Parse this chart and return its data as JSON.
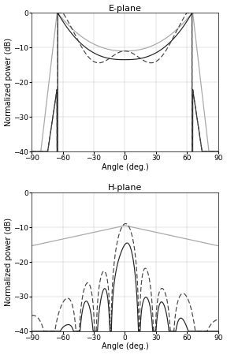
{
  "title_eplane": "E-plane",
  "title_hplane": "H-plane",
  "xlabel": "Angle (deg.)",
  "ylabel": "Normalized power (dB)",
  "xlim": [
    -90,
    90
  ],
  "ylim": [
    -40,
    0
  ],
  "xticks": [
    -90,
    -60,
    -30,
    0,
    30,
    60,
    90
  ],
  "yticks": [
    0,
    -10,
    -20,
    -30,
    -40
  ],
  "title_fontsize": 8,
  "label_fontsize": 7,
  "tick_fontsize": 6.5,
  "grid_color": "#c8c8c8",
  "background_color": "#ffffff",
  "fig_width": 2.88,
  "fig_height": 4.5,
  "fig_dpi": 100
}
